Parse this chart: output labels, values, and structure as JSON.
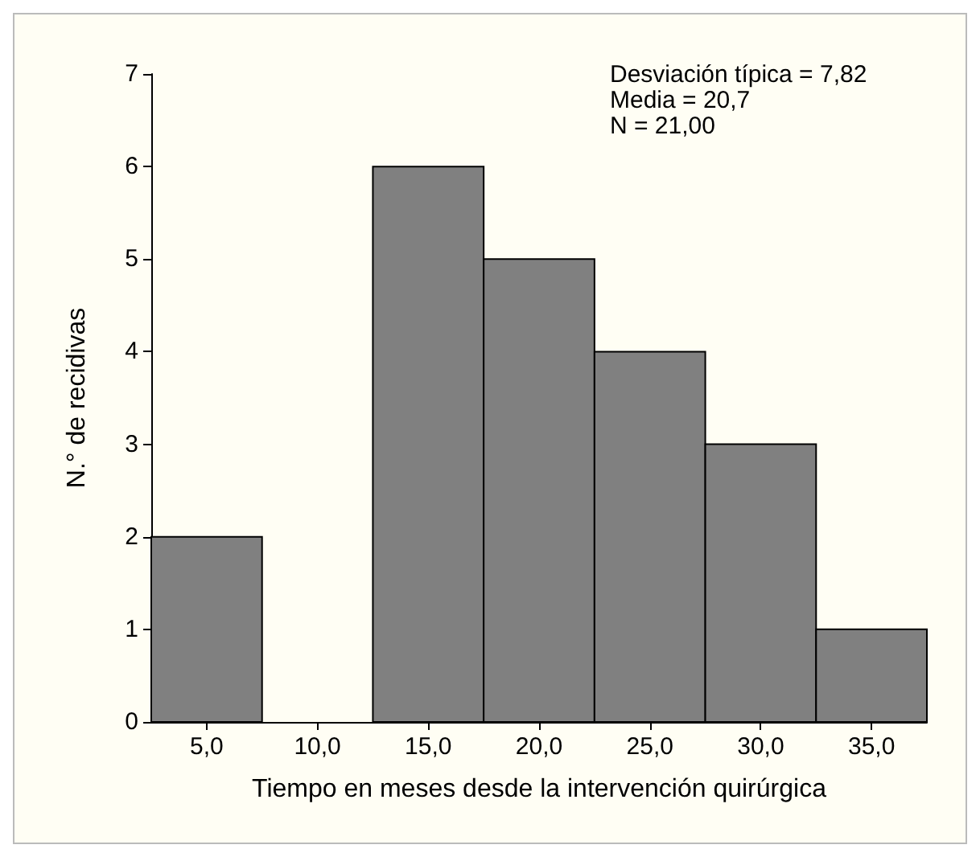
{
  "chart_data": {
    "type": "histogram",
    "bins": [
      2.5,
      7.5,
      12.5,
      17.5,
      22.5,
      27.5,
      32.5,
      37.5
    ],
    "values": [
      2,
      0,
      6,
      5,
      4,
      3,
      1
    ],
    "color": "#808080",
    "xlabel": "Tiempo en meses desde la intervención quirúrgica",
    "ylabel": "N.° de recidivas",
    "xlim": [
      2.5,
      37.5
    ],
    "xticks": [
      {
        "value": 5,
        "label": "5,0"
      },
      {
        "value": 10,
        "label": "10,0"
      },
      {
        "value": 15,
        "label": "15,0"
      },
      {
        "value": 20,
        "label": "20,0"
      },
      {
        "value": 25,
        "label": "25,0"
      },
      {
        "value": 30,
        "label": "30,0"
      },
      {
        "value": 35,
        "label": "35,0"
      }
    ],
    "ylim": [
      0,
      7
    ],
    "yticks": [
      0,
      1,
      2,
      3,
      4,
      5,
      6,
      7
    ],
    "grid": false,
    "annotations": [
      "Desviación típica = 7,82",
      "Media = 20,7",
      "N = 21,00"
    ]
  }
}
